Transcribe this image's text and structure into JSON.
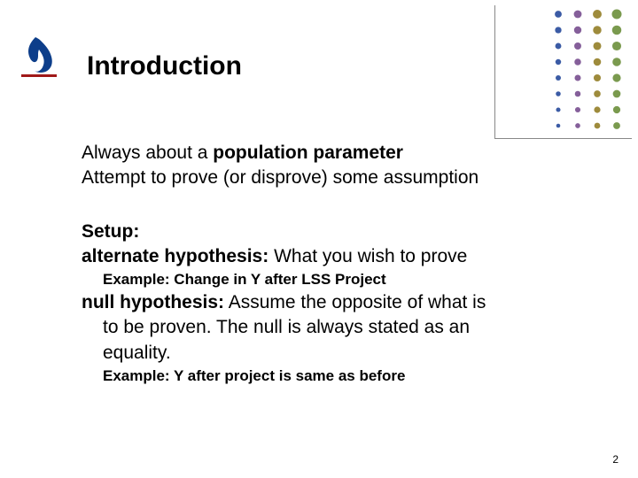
{
  "logo": {
    "flame_color": "#0d3e8a",
    "underline_color": "#a01818"
  },
  "title": "Introduction",
  "dots": {
    "colors": [
      "#3b5ba5",
      "#855f9a",
      "#9e8b3c",
      "#7a9a4e"
    ],
    "min_r": 2.3,
    "max_r": 5.5,
    "rows": 8,
    "cols": 4,
    "cx_start": 64,
    "cx_step": 22,
    "cy_start": 10,
    "cy_step": 18
  },
  "content": {
    "always_prefix": "Always about a ",
    "always_bold": "population parameter",
    "attempt": "Attempt to prove (or disprove) some assumption",
    "setup": "Setup:",
    "alt_bold": "alternate hypothesis:",
    "alt_rest": " What you wish to prove",
    "example1": "Example: Change in Y after LSS Project",
    "null_bold": "null hypothesis:",
    "null_rest1": " Assume the opposite of what is",
    "null_rest2": "to be proven. The null is always stated as an",
    "null_rest3": "equality.",
    "example2": "Example: Y after project is same as before"
  },
  "page_number": "2"
}
